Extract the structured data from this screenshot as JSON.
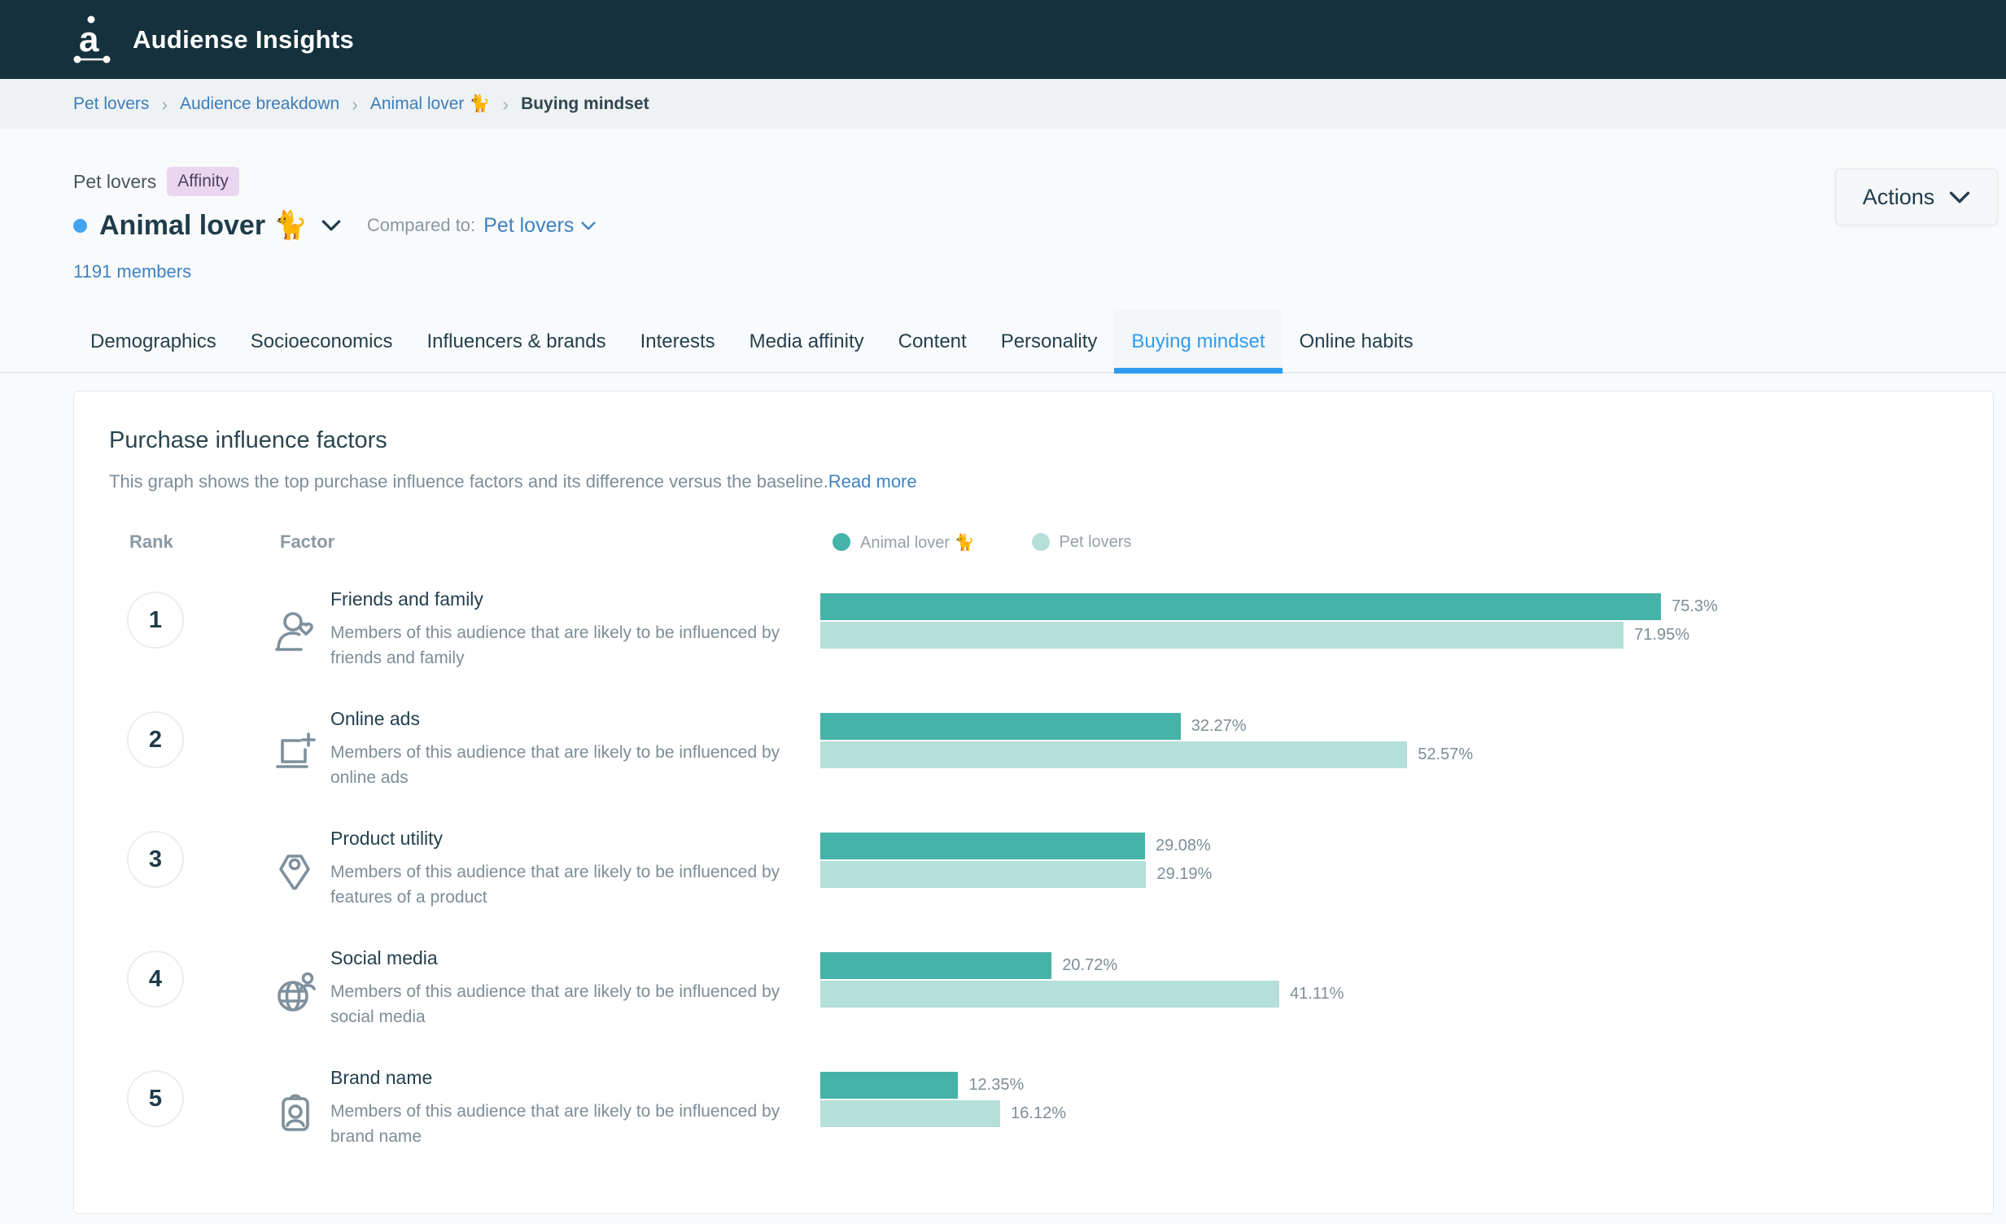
{
  "app": {
    "name": "Audiense Insights"
  },
  "breadcrumb": {
    "items": [
      "Pet lovers",
      "Audience breakdown",
      "Animal lover 🐈"
    ],
    "current": "Buying mindset"
  },
  "header": {
    "parent_name": "Pet lovers",
    "badge": "Affinity",
    "title": "Animal lover 🐈",
    "compared_label": "Compared to:",
    "compared_value": "Pet lovers",
    "members": "1191 members",
    "actions": "Actions"
  },
  "tabs": {
    "items": [
      "Demographics",
      "Socioeconomics",
      "Influencers & brands",
      "Interests",
      "Media affinity",
      "Content",
      "Personality",
      "Buying mindset",
      "Online habits"
    ],
    "active": "Buying mindset"
  },
  "card": {
    "title": "Purchase influence factors",
    "description": "This graph shows the top purchase influence factors and its difference versus the baseline.",
    "read_more": "Read more",
    "col_rank": "Rank",
    "col_factor": "Factor"
  },
  "legend": [
    {
      "label": "Animal lover 🐈",
      "color": "#45b3a9"
    },
    {
      "label": "Pet lovers",
      "color": "#b5dfd9"
    }
  ],
  "chart_data": {
    "type": "bar",
    "orientation": "horizontal",
    "categories": [
      "Friends and family",
      "Online ads",
      "Product utility",
      "Social media",
      "Brand name"
    ],
    "series": [
      {
        "name": "Animal lover 🐈",
        "color": "#45b3a9",
        "values": [
          75.3,
          32.27,
          29.08,
          20.72,
          12.35
        ]
      },
      {
        "name": "Pet lovers",
        "color": "#b5dfd9",
        "values": [
          71.95,
          52.57,
          29.19,
          41.11,
          16.12
        ]
      }
    ],
    "xlim": [
      0,
      100
    ],
    "legend_position": "top"
  },
  "rows": [
    {
      "rank": "1",
      "icon": "user-heart-icon",
      "title": "Friends and family",
      "description": "Members of this audience that are likely to be influenced by friends and family",
      "primary_value": 75.3,
      "primary_label": "75.3%",
      "baseline_value": 71.95,
      "baseline_label": "71.95%"
    },
    {
      "rank": "2",
      "icon": "screen-plus-icon",
      "title": "Online ads",
      "description": "Members of this audience that are likely to be influenced by online ads",
      "primary_value": 32.27,
      "primary_label": "32.27%",
      "baseline_value": 52.57,
      "baseline_label": "52.57%"
    },
    {
      "rank": "3",
      "icon": "tag-icon",
      "title": "Product utility",
      "description": "Members of this audience that are likely to be influenced by features of a product",
      "primary_value": 29.08,
      "primary_label": "29.08%",
      "baseline_value": 29.19,
      "baseline_label": "29.19%"
    },
    {
      "rank": "4",
      "icon": "globe-user-icon",
      "title": "Social media",
      "description": "Members of this audience that are likely to be influenced by social media",
      "primary_value": 20.72,
      "primary_label": "20.72%",
      "baseline_value": 41.11,
      "baseline_label": "41.11%"
    },
    {
      "rank": "5",
      "icon": "badge-user-icon",
      "title": "Brand name",
      "description": "Members of this audience that are likely to be influenced by brand name",
      "primary_value": 12.35,
      "primary_label": "12.35%",
      "baseline_value": 16.12,
      "baseline_label": "16.12%"
    }
  ],
  "colors": {
    "topbar_bg": "#14313d",
    "accent_blue": "#2f9cf0",
    "link_blue": "#3d82c4",
    "primary_teal": "#45b3a9",
    "baseline_teal": "#b5dfd9",
    "badge_bg": "#e9d7f1",
    "title_dark": "#1e3c4b",
    "text_gray": "#7d8d97"
  }
}
